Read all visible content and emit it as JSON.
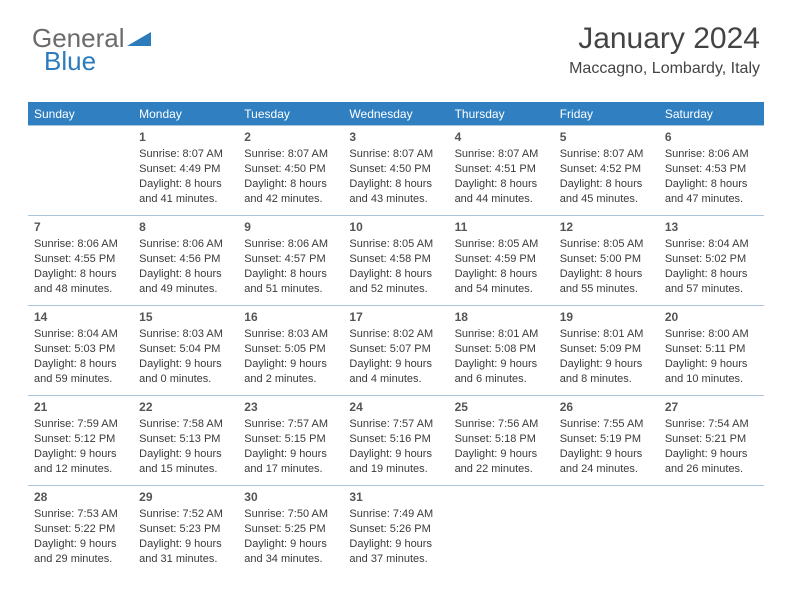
{
  "brand": {
    "part1": "General",
    "part2": "Blue"
  },
  "title": "January 2024",
  "location": "Maccagno, Lombardy, Italy",
  "style": {
    "header_bg": "#2f7fc1",
    "header_fg": "#ffffff",
    "border_color": "#a9c4db",
    "text_color": "#3a3a3a",
    "daynum_color": "#555555",
    "title_color": "#444444",
    "brand_muted": "#6b6b6b",
    "brand_accent": "#2b7bbd",
    "background": "#ffffff",
    "header_fontsize": 12,
    "cell_fontsize": 11,
    "title_fontsize": 30,
    "location_fontsize": 16
  },
  "weekdays": [
    "Sunday",
    "Monday",
    "Tuesday",
    "Wednesday",
    "Thursday",
    "Friday",
    "Saturday"
  ],
  "weeks": [
    [
      null,
      {
        "n": "1",
        "sr": "8:07 AM",
        "ss": "4:49 PM",
        "dl": "8 hours and 41 minutes."
      },
      {
        "n": "2",
        "sr": "8:07 AM",
        "ss": "4:50 PM",
        "dl": "8 hours and 42 minutes."
      },
      {
        "n": "3",
        "sr": "8:07 AM",
        "ss": "4:50 PM",
        "dl": "8 hours and 43 minutes."
      },
      {
        "n": "4",
        "sr": "8:07 AM",
        "ss": "4:51 PM",
        "dl": "8 hours and 44 minutes."
      },
      {
        "n": "5",
        "sr": "8:07 AM",
        "ss": "4:52 PM",
        "dl": "8 hours and 45 minutes."
      },
      {
        "n": "6",
        "sr": "8:06 AM",
        "ss": "4:53 PM",
        "dl": "8 hours and 47 minutes."
      }
    ],
    [
      {
        "n": "7",
        "sr": "8:06 AM",
        "ss": "4:55 PM",
        "dl": "8 hours and 48 minutes."
      },
      {
        "n": "8",
        "sr": "8:06 AM",
        "ss": "4:56 PM",
        "dl": "8 hours and 49 minutes."
      },
      {
        "n": "9",
        "sr": "8:06 AM",
        "ss": "4:57 PM",
        "dl": "8 hours and 51 minutes."
      },
      {
        "n": "10",
        "sr": "8:05 AM",
        "ss": "4:58 PM",
        "dl": "8 hours and 52 minutes."
      },
      {
        "n": "11",
        "sr": "8:05 AM",
        "ss": "4:59 PM",
        "dl": "8 hours and 54 minutes."
      },
      {
        "n": "12",
        "sr": "8:05 AM",
        "ss": "5:00 PM",
        "dl": "8 hours and 55 minutes."
      },
      {
        "n": "13",
        "sr": "8:04 AM",
        "ss": "5:02 PM",
        "dl": "8 hours and 57 minutes."
      }
    ],
    [
      {
        "n": "14",
        "sr": "8:04 AM",
        "ss": "5:03 PM",
        "dl": "8 hours and 59 minutes."
      },
      {
        "n": "15",
        "sr": "8:03 AM",
        "ss": "5:04 PM",
        "dl": "9 hours and 0 minutes."
      },
      {
        "n": "16",
        "sr": "8:03 AM",
        "ss": "5:05 PM",
        "dl": "9 hours and 2 minutes."
      },
      {
        "n": "17",
        "sr": "8:02 AM",
        "ss": "5:07 PM",
        "dl": "9 hours and 4 minutes."
      },
      {
        "n": "18",
        "sr": "8:01 AM",
        "ss": "5:08 PM",
        "dl": "9 hours and 6 minutes."
      },
      {
        "n": "19",
        "sr": "8:01 AM",
        "ss": "5:09 PM",
        "dl": "9 hours and 8 minutes."
      },
      {
        "n": "20",
        "sr": "8:00 AM",
        "ss": "5:11 PM",
        "dl": "9 hours and 10 minutes."
      }
    ],
    [
      {
        "n": "21",
        "sr": "7:59 AM",
        "ss": "5:12 PM",
        "dl": "9 hours and 12 minutes."
      },
      {
        "n": "22",
        "sr": "7:58 AM",
        "ss": "5:13 PM",
        "dl": "9 hours and 15 minutes."
      },
      {
        "n": "23",
        "sr": "7:57 AM",
        "ss": "5:15 PM",
        "dl": "9 hours and 17 minutes."
      },
      {
        "n": "24",
        "sr": "7:57 AM",
        "ss": "5:16 PM",
        "dl": "9 hours and 19 minutes."
      },
      {
        "n": "25",
        "sr": "7:56 AM",
        "ss": "5:18 PM",
        "dl": "9 hours and 22 minutes."
      },
      {
        "n": "26",
        "sr": "7:55 AM",
        "ss": "5:19 PM",
        "dl": "9 hours and 24 minutes."
      },
      {
        "n": "27",
        "sr": "7:54 AM",
        "ss": "5:21 PM",
        "dl": "9 hours and 26 minutes."
      }
    ],
    [
      {
        "n": "28",
        "sr": "7:53 AM",
        "ss": "5:22 PM",
        "dl": "9 hours and 29 minutes."
      },
      {
        "n": "29",
        "sr": "7:52 AM",
        "ss": "5:23 PM",
        "dl": "9 hours and 31 minutes."
      },
      {
        "n": "30",
        "sr": "7:50 AM",
        "ss": "5:25 PM",
        "dl": "9 hours and 34 minutes."
      },
      {
        "n": "31",
        "sr": "7:49 AM",
        "ss": "5:26 PM",
        "dl": "9 hours and 37 minutes."
      },
      null,
      null,
      null
    ]
  ],
  "labels": {
    "sunrise": "Sunrise: ",
    "sunset": "Sunset: ",
    "daylight": "Daylight: "
  }
}
